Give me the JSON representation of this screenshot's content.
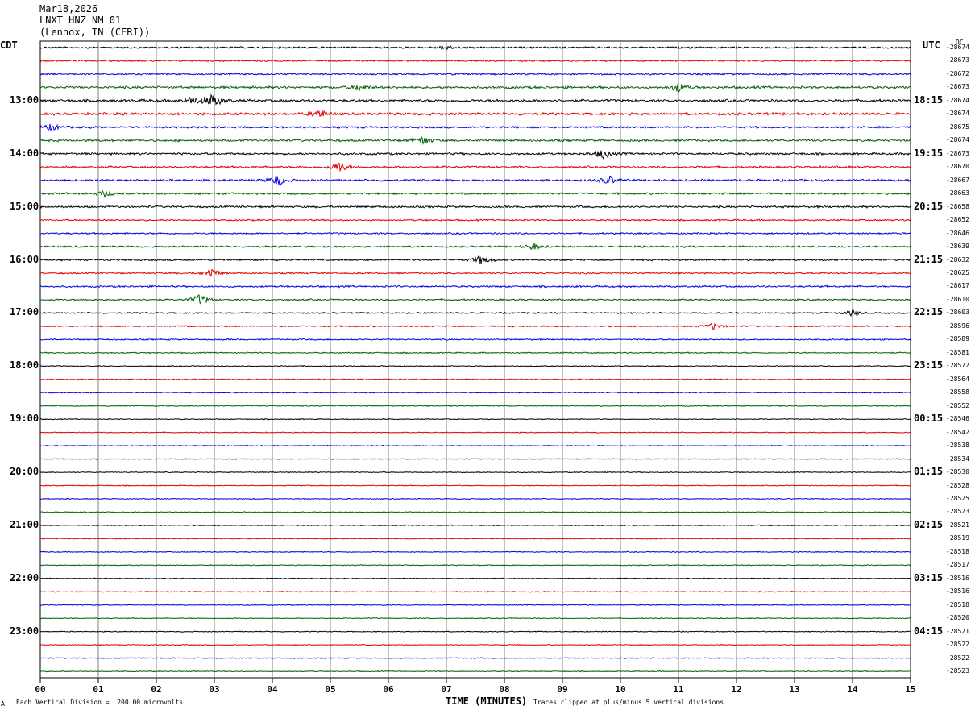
{
  "header": {
    "date": "Mar18,2026",
    "station": "LNXT HNZ NM 01",
    "location": "(Lennox, TN (CERI))"
  },
  "left_tz": "CDT",
  "right_tz": "UTC",
  "dc_header": "DC",
  "footer": {
    "corner_mark": "A",
    "scale_note": "Each Vertical Division =  200.00 microvolts",
    "clip_note": "Traces clipped at plus/minus 5 vertical divisions"
  },
  "colors": {
    "trace_cycle": [
      "#000000",
      "#e00000",
      "#0000e0",
      "#006000"
    ],
    "grid": "#808080"
  },
  "chart_data": {
    "type": "line",
    "title": "LNXT HNZ NM 01",
    "xlabel": "TIME (MINUTES)",
    "x_ticks": [
      "00",
      "01",
      "02",
      "03",
      "04",
      "05",
      "06",
      "07",
      "08",
      "09",
      "10",
      "11",
      "12",
      "13",
      "14",
      "15"
    ],
    "xlim": [
      0,
      15
    ],
    "left_hour_labels": [
      "13:00",
      "14:00",
      "15:00",
      "16:00",
      "17:00",
      "18:00",
      "19:00",
      "20:00",
      "21:00",
      "22:00",
      "23:00"
    ],
    "right_hour_labels": [
      "18:15",
      "19:15",
      "20:15",
      "21:15",
      "22:15",
      "23:15",
      "00:15",
      "01:15",
      "02:15",
      "03:15",
      "04:15"
    ],
    "dc_offsets": [
      "-28674",
      "-28673",
      "-28672",
      "-28673",
      "-28674",
      "-28674",
      "-28675",
      "-28674",
      "-28673",
      "-28670",
      "-28667",
      "-28663",
      "-28658",
      "-28652",
      "-28646",
      "-28639",
      "-28632",
      "-28625",
      "-28617",
      "-28610",
      "-28603",
      "-28596",
      "-28589",
      "-28581",
      "-28572",
      "-28564",
      "-28558",
      "-28552",
      "-28546",
      "-28542",
      "-28538",
      "-28534",
      "-28530",
      "-28528",
      "-28525",
      "-28523",
      "-28521",
      "-28519",
      "-28518",
      "-28517",
      "-28516",
      "-28516",
      "-28518",
      "-28520",
      "-28521",
      "-28522",
      "-28522",
      "-28523"
    ],
    "activity": [
      0.9,
      0.8,
      0.9,
      1.2,
      1.3,
      1.3,
      1.0,
      1.1,
      1.1,
      1.0,
      1.1,
      1.0,
      1.0,
      0.8,
      0.8,
      0.9,
      0.9,
      0.8,
      0.9,
      0.8,
      0.7,
      0.7,
      0.7,
      0.6,
      0.5,
      0.5,
      0.5,
      0.5,
      0.45,
      0.45,
      0.45,
      0.45,
      0.45,
      0.45,
      0.45,
      0.45,
      0.45,
      0.45,
      0.45,
      0.45,
      0.45,
      0.45,
      0.45,
      0.45,
      0.45,
      0.45,
      0.45,
      0.45
    ],
    "events": [
      {
        "trace": 0,
        "minute": 7.0,
        "amp": 3
      },
      {
        "trace": 3,
        "minute": 5.5,
        "amp": 4
      },
      {
        "trace": 3,
        "minute": 11.0,
        "amp": 6
      },
      {
        "trace": 4,
        "minute": 2.6,
        "amp": 5
      },
      {
        "trace": 4,
        "minute": 2.98,
        "amp": 9
      },
      {
        "trace": 5,
        "minute": 4.8,
        "amp": 6
      },
      {
        "trace": 6,
        "minute": 0.2,
        "amp": 4
      },
      {
        "trace": 7,
        "minute": 6.6,
        "amp": 6
      },
      {
        "trace": 8,
        "minute": 9.7,
        "amp": 6
      },
      {
        "trace": 9,
        "minute": 5.15,
        "amp": 7
      },
      {
        "trace": 10,
        "minute": 4.1,
        "amp": 7
      },
      {
        "trace": 10,
        "minute": 9.8,
        "amp": 5
      },
      {
        "trace": 11,
        "minute": 1.1,
        "amp": 4
      },
      {
        "trace": 15,
        "minute": 8.5,
        "amp": 4
      },
      {
        "trace": 16,
        "minute": 7.6,
        "amp": 6
      },
      {
        "trace": 17,
        "minute": 2.95,
        "amp": 6
      },
      {
        "trace": 19,
        "minute": 2.75,
        "amp": 7
      },
      {
        "trace": 20,
        "minute": 14.0,
        "amp": 4
      },
      {
        "trace": 21,
        "minute": 11.6,
        "amp": 4
      }
    ]
  }
}
